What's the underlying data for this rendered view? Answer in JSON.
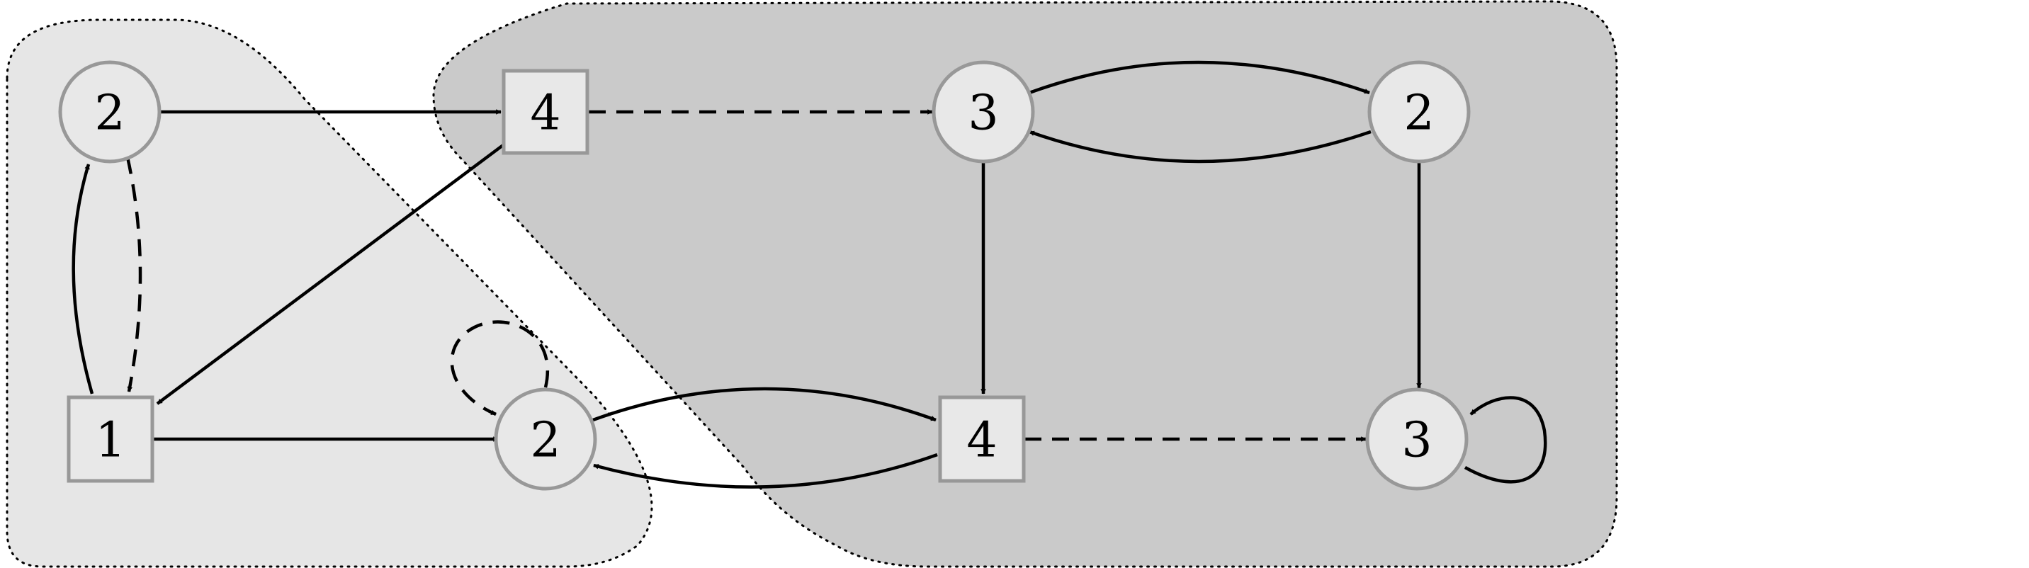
{
  "diagram": {
    "regions": [
      {
        "id": "left-region",
        "shade": "light",
        "fill": "#e6e6e6"
      },
      {
        "id": "right-region",
        "shade": "dark",
        "fill": "#cacaca"
      }
    ],
    "nodes": [
      {
        "id": "n_tl",
        "label": "2",
        "shape": "circle"
      },
      {
        "id": "n_sq_top",
        "label": "4",
        "shape": "square"
      },
      {
        "id": "n_c3_top",
        "label": "3",
        "shape": "circle"
      },
      {
        "id": "n_c2_tr",
        "label": "2",
        "shape": "circle"
      },
      {
        "id": "n_sq_bl",
        "label": "1",
        "shape": "square"
      },
      {
        "id": "n_c2_mid",
        "label": "2",
        "shape": "circle"
      },
      {
        "id": "n_sq_bot",
        "label": "4",
        "shape": "square"
      },
      {
        "id": "n_c3_br",
        "label": "3",
        "shape": "circle"
      }
    ],
    "edges": [
      {
        "from": "n_tl",
        "to": "n_sq_top",
        "style": "solid"
      },
      {
        "from": "n_sq_top",
        "to": "n_c3_top",
        "style": "dashed"
      },
      {
        "from": "n_c3_top",
        "to": "n_c2_tr",
        "style": "solid"
      },
      {
        "from": "n_c2_tr",
        "to": "n_c3_top",
        "style": "solid"
      },
      {
        "from": "n_c3_top",
        "to": "n_sq_bot",
        "style": "solid"
      },
      {
        "from": "n_c2_tr",
        "to": "n_c3_br",
        "style": "solid"
      },
      {
        "from": "n_c3_br",
        "to": "n_c3_br",
        "style": "solid"
      },
      {
        "from": "n_sq_top",
        "to": "n_sq_bl",
        "style": "solid"
      },
      {
        "from": "n_sq_bl",
        "to": "n_tl",
        "style": "solid"
      },
      {
        "from": "n_tl",
        "to": "n_sq_bl",
        "style": "dashed"
      },
      {
        "from": "n_sq_bl",
        "to": "n_c2_mid",
        "style": "solid"
      },
      {
        "from": "n_c2_mid",
        "to": "n_c2_mid",
        "style": "dashed"
      },
      {
        "from": "n_c2_mid",
        "to": "n_sq_bot",
        "style": "solid"
      },
      {
        "from": "n_sq_bot",
        "to": "n_c2_mid",
        "style": "solid"
      },
      {
        "from": "n_sq_bot",
        "to": "n_c3_br",
        "style": "dashed"
      }
    ]
  }
}
